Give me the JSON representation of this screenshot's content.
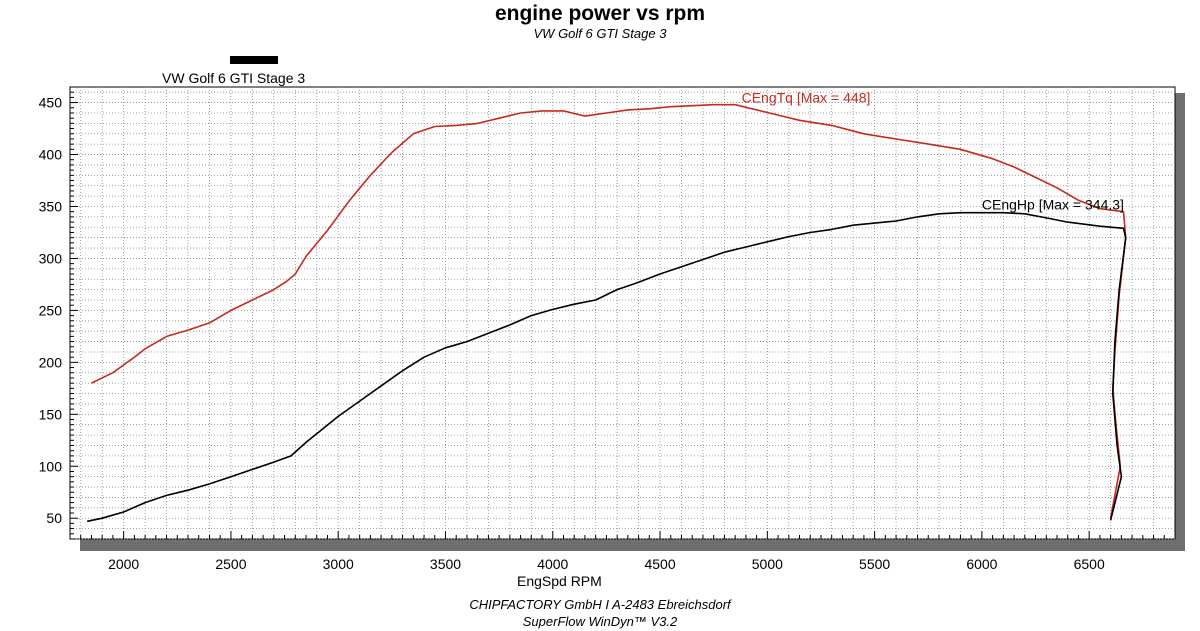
{
  "chart_data": {
    "type": "line",
    "title": "engine power vs rpm",
    "subtitle": "VW Golf 6 GTI Stage 3",
    "legend": "VW Golf 6 GTI Stage 3",
    "xlabel": "EngSpd RPM",
    "ylabel": "",
    "xlim": [
      1750,
      6900
    ],
    "ylim": [
      30,
      465
    ],
    "x_ticks": [
      2000,
      2500,
      3000,
      3500,
      4000,
      4500,
      5000,
      5500,
      6000,
      6500
    ],
    "y_ticks": [
      50,
      100,
      150,
      200,
      250,
      300,
      350,
      400,
      450
    ],
    "grid": true,
    "series": [
      {
        "name": "CEngTq",
        "color": "#c8281e",
        "annotation": "CEngTq [Max = 448]",
        "points": [
          [
            1850,
            180
          ],
          [
            1950,
            190
          ],
          [
            2050,
            205
          ],
          [
            2100,
            213
          ],
          [
            2200,
            225
          ],
          [
            2300,
            231
          ],
          [
            2400,
            238
          ],
          [
            2500,
            250
          ],
          [
            2600,
            260
          ],
          [
            2700,
            270
          ],
          [
            2760,
            278
          ],
          [
            2800,
            285
          ],
          [
            2850,
            302
          ],
          [
            2950,
            327
          ],
          [
            3050,
            355
          ],
          [
            3150,
            380
          ],
          [
            3250,
            402
          ],
          [
            3350,
            420
          ],
          [
            3450,
            427
          ],
          [
            3550,
            428
          ],
          [
            3650,
            430
          ],
          [
            3750,
            435
          ],
          [
            3850,
            440
          ],
          [
            3950,
            442
          ],
          [
            4050,
            442
          ],
          [
            4150,
            437
          ],
          [
            4250,
            440
          ],
          [
            4350,
            443
          ],
          [
            4450,
            444
          ],
          [
            4550,
            446
          ],
          [
            4650,
            447
          ],
          [
            4750,
            448
          ],
          [
            4850,
            448
          ],
          [
            4950,
            443
          ],
          [
            5050,
            438
          ],
          [
            5150,
            433
          ],
          [
            5300,
            428
          ],
          [
            5450,
            420
          ],
          [
            5600,
            415
          ],
          [
            5750,
            410
          ],
          [
            5900,
            405
          ],
          [
            6050,
            396
          ],
          [
            6150,
            388
          ],
          [
            6250,
            378
          ],
          [
            6350,
            368
          ],
          [
            6450,
            356
          ],
          [
            6550,
            348
          ],
          [
            6660,
            345
          ],
          [
            6670,
            320
          ],
          [
            6640,
            265
          ],
          [
            6620,
            210
          ],
          [
            6610,
            175
          ],
          [
            6625,
            140
          ],
          [
            6645,
            100
          ],
          [
            6600,
            50
          ]
        ]
      },
      {
        "name": "CEngHp",
        "color": "#000000",
        "annotation": "CEngHp [Max = 344.3]",
        "points": [
          [
            1830,
            47
          ],
          [
            1900,
            50
          ],
          [
            2000,
            56
          ],
          [
            2100,
            65
          ],
          [
            2200,
            72
          ],
          [
            2300,
            77
          ],
          [
            2400,
            83
          ],
          [
            2500,
            90
          ],
          [
            2600,
            97
          ],
          [
            2700,
            104
          ],
          [
            2780,
            110
          ],
          [
            2850,
            123
          ],
          [
            3000,
            148
          ],
          [
            3150,
            170
          ],
          [
            3300,
            192
          ],
          [
            3400,
            205
          ],
          [
            3500,
            214
          ],
          [
            3600,
            220
          ],
          [
            3700,
            228
          ],
          [
            3800,
            236
          ],
          [
            3900,
            245
          ],
          [
            4000,
            251
          ],
          [
            4100,
            256
          ],
          [
            4200,
            260
          ],
          [
            4300,
            270
          ],
          [
            4400,
            277
          ],
          [
            4500,
            285
          ],
          [
            4600,
            292
          ],
          [
            4700,
            299
          ],
          [
            4800,
            306
          ],
          [
            4900,
            311
          ],
          [
            5000,
            316
          ],
          [
            5100,
            321
          ],
          [
            5200,
            325
          ],
          [
            5300,
            328
          ],
          [
            5400,
            332
          ],
          [
            5500,
            334
          ],
          [
            5600,
            336
          ],
          [
            5700,
            340
          ],
          [
            5800,
            343
          ],
          [
            5900,
            344
          ],
          [
            6000,
            344
          ],
          [
            6100,
            344
          ],
          [
            6200,
            343
          ],
          [
            6300,
            339
          ],
          [
            6400,
            335
          ],
          [
            6550,
            331
          ],
          [
            6660,
            329
          ],
          [
            6670,
            320
          ],
          [
            6640,
            270
          ],
          [
            6620,
            220
          ],
          [
            6610,
            170
          ],
          [
            6630,
            120
          ],
          [
            6650,
            90
          ],
          [
            6600,
            48
          ]
        ]
      }
    ]
  },
  "footer": {
    "line1": "CHIPFACTORY GmbH I A-2483 Ebreichsdorf",
    "line2": "SuperFlow WinDyn™ V3.2"
  }
}
